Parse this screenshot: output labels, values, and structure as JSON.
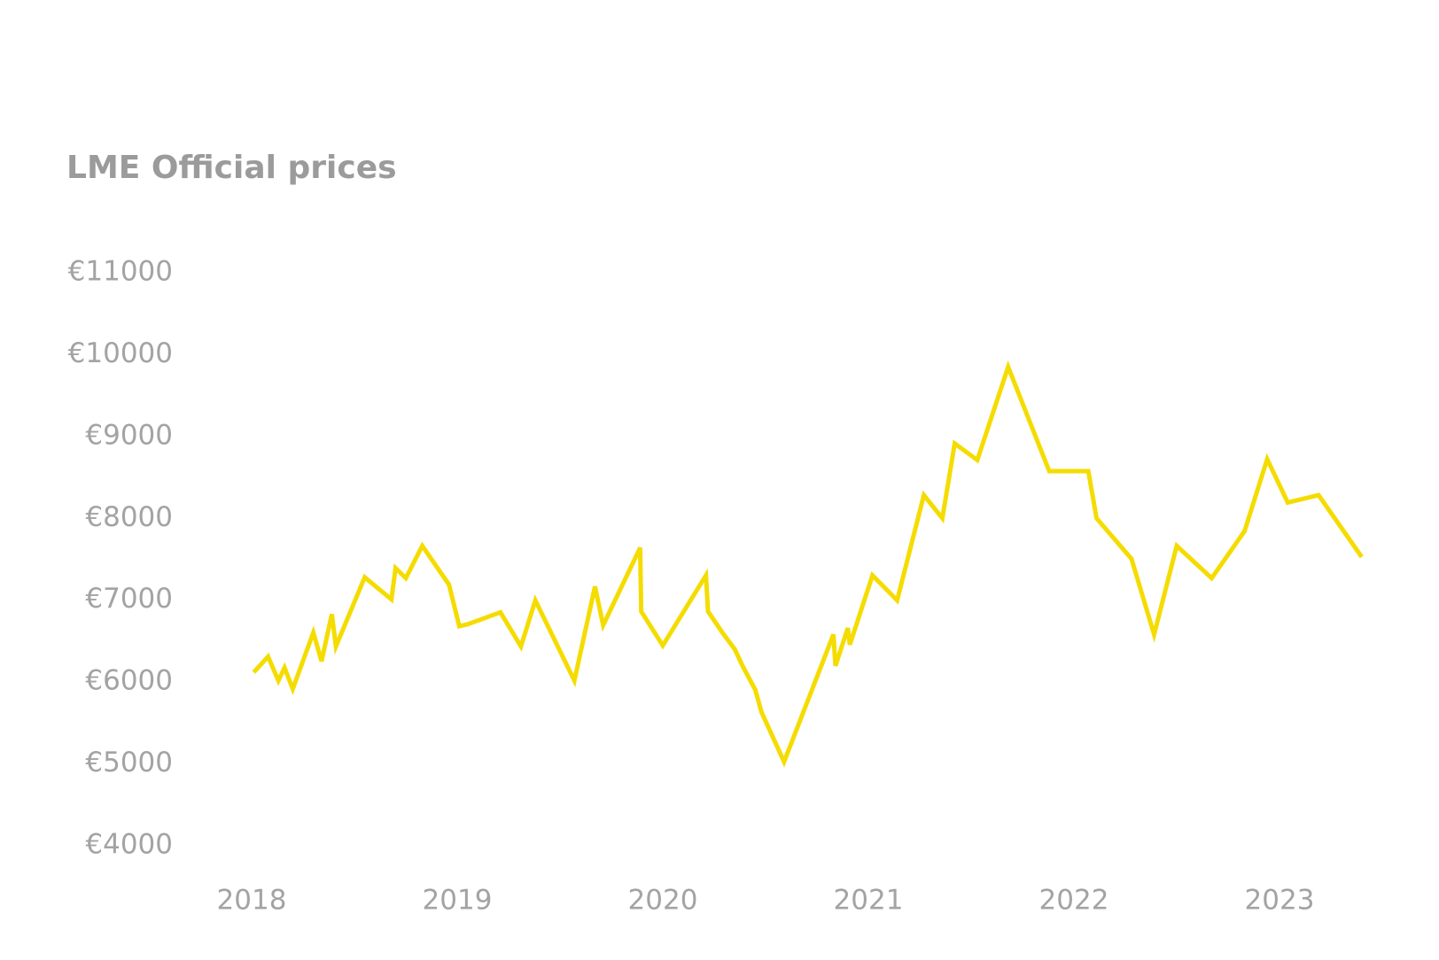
{
  "chart_data": {
    "type": "line",
    "title": "LME Official prices",
    "x": [
      2018.01,
      2018.08,
      2018.13,
      2018.16,
      2018.2,
      2018.3,
      2018.34,
      2018.39,
      2018.41,
      2018.55,
      2018.68,
      2018.7,
      2018.75,
      2018.83,
      2018.96,
      2019.01,
      2019.05,
      2019.21,
      2019.31,
      2019.38,
      2019.57,
      2019.67,
      2019.71,
      2019.89,
      2019.895,
      2020.0,
      2020.21,
      2020.22,
      2020.29,
      2020.35,
      2020.39,
      2020.45,
      2020.48,
      2020.59,
      2020.83,
      2020.84,
      2020.9,
      2020.91,
      2021.02,
      2021.14,
      2021.27,
      2021.36,
      2021.42,
      2021.53,
      2021.68,
      2021.88,
      2022.07,
      2022.11,
      2022.28,
      2022.39,
      2022.5,
      2022.67,
      2022.83,
      2022.94,
      2023.04,
      2023.19,
      2023.4
    ],
    "series": [
      {
        "name": "LME Official prices",
        "color": "#f5dc00",
        "values": [
          6119,
          6311,
          6017,
          6175,
          5916,
          6604,
          6254,
          6829,
          6435,
          7280,
          7010,
          7393,
          7269,
          7664,
          7190,
          6683,
          6705,
          6852,
          6435,
          6998,
          6017,
          7167,
          6694,
          7641,
          6863,
          6446,
          7303,
          6863,
          6604,
          6401,
          6187,
          5905,
          5634,
          5026,
          6581,
          6198,
          6660,
          6457,
          7303,
          6998,
          8283,
          8001,
          8914,
          8712,
          9850,
          8576,
          8576,
          8001,
          7505,
          6581,
          7664,
          7269,
          7844,
          8723,
          8193,
          8283,
          7528
        ]
      }
    ],
    "xlim": [
      2018,
      2023.5
    ],
    "xticks": [
      2018,
      2019,
      2020,
      2021,
      2022,
      2023
    ],
    "ylim": [
      4000,
      11000
    ],
    "yticks": [
      {
        "value": 4000,
        "label": "€4000"
      },
      {
        "value": 5000,
        "label": "€5000"
      },
      {
        "value": 6000,
        "label": "€6000"
      },
      {
        "value": 7000,
        "label": "€7000"
      },
      {
        "value": 8000,
        "label": "€8000"
      },
      {
        "value": 9000,
        "label": "€9000"
      },
      {
        "value": 10000,
        "label": "€10000"
      },
      {
        "value": 11000,
        "label": "€11000"
      }
    ],
    "grid": false
  }
}
